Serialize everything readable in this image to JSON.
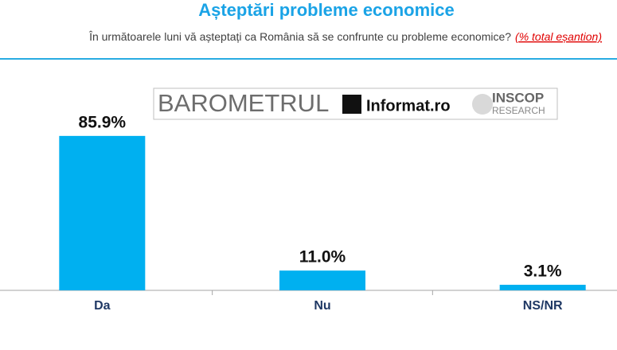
{
  "chart_data": {
    "type": "bar",
    "title": "Așteptări probleme economice",
    "subtitle": "În următoarele luni vă așteptați ca România să se confrunte cu probleme economice?",
    "subtitle_note": "(% total eșantion)",
    "logo": {
      "barometrul": "BAROMETRUL",
      "informat": "Informat.ro",
      "inscop": "INSCOP",
      "research": "RESEARCH"
    },
    "categories": [
      "Da",
      "Nu",
      "NS/NR"
    ],
    "values": [
      85.9,
      11.0,
      3.1
    ],
    "value_labels": [
      "85.9%",
      "11.0%",
      "3.1%"
    ],
    "color": "#00b0f0",
    "ylim": [
      0,
      100
    ]
  }
}
